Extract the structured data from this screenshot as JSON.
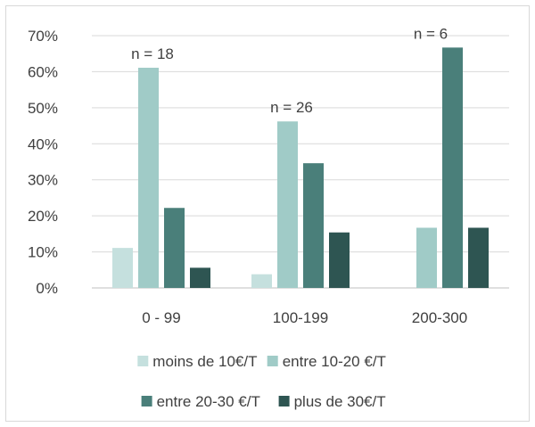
{
  "chart_data": {
    "type": "bar",
    "categories": [
      "0 - 99",
      "100-199",
      "200-300"
    ],
    "series": [
      {
        "name": "moins de 10€/T",
        "color": "#c5e0de",
        "values": [
          11.1,
          3.8,
          0
        ]
      },
      {
        "name": "entre 10-20 €/T",
        "color": "#a0cbc7",
        "values": [
          61.1,
          46.2,
          16.7
        ]
      },
      {
        "name": "entre 20-30 €/T",
        "color": "#4a7f7a",
        "values": [
          22.2,
          34.6,
          66.7
        ]
      },
      {
        "name": "plus de 30€/T",
        "color": "#2e5552",
        "values": [
          5.6,
          15.4,
          16.7
        ]
      }
    ],
    "annotations": [
      "n = 18",
      "n = 26",
      "n = 6"
    ],
    "ylim": [
      0,
      70
    ],
    "yticks": [
      "0%",
      "10%",
      "20%",
      "30%",
      "40%",
      "50%",
      "60%",
      "70%"
    ],
    "grid": true,
    "legend_position": "bottom"
  }
}
